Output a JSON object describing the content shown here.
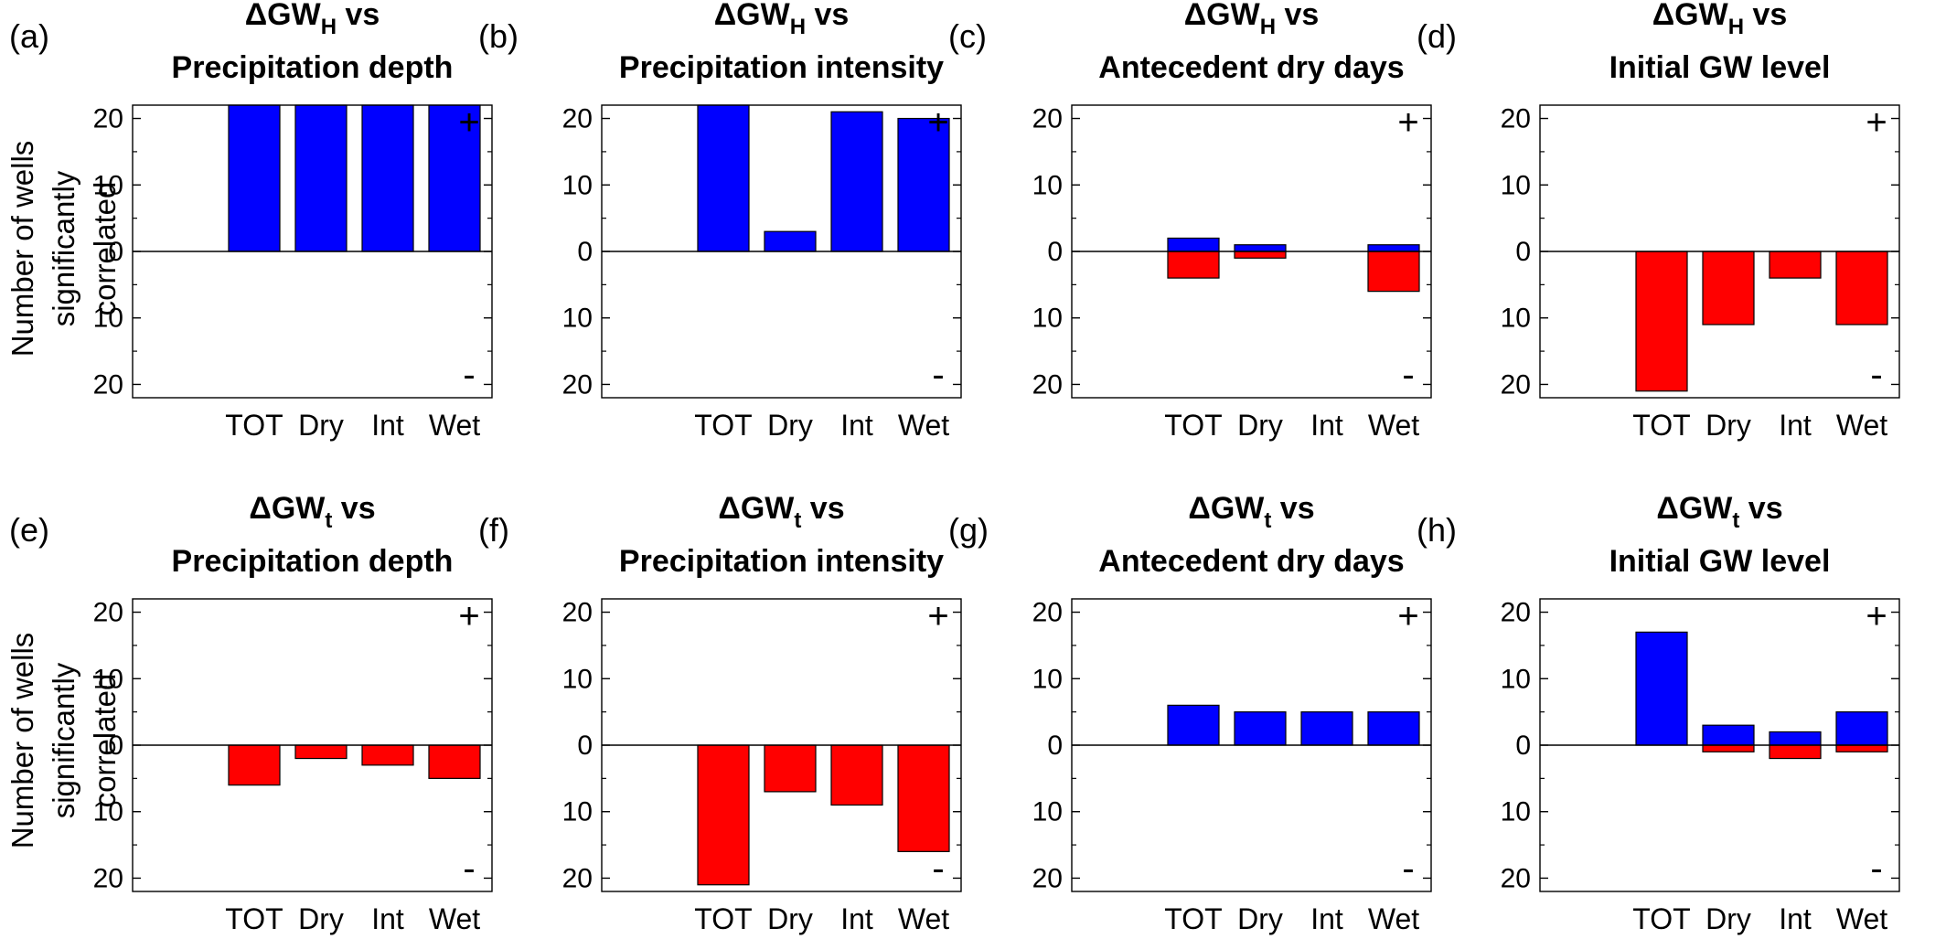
{
  "figure": {
    "ylabel_lines": [
      "Number of wells",
      "significantly",
      "correlated"
    ],
    "categories": [
      "TOT",
      "Dry",
      "Int",
      "Wet"
    ],
    "yticks": [
      "20",
      "10",
      "0",
      "10",
      "20"
    ],
    "plus_sign": "+",
    "minus_sign": "-",
    "colors": {
      "positive": "#0000ff",
      "negative": "#ff0000"
    }
  },
  "chart_data": [
    {
      "type": "bar",
      "panel": "(a)",
      "title_prefix": "ΔGW",
      "title_sub": "H",
      "title_suffix": " vs",
      "title_line2": "Precipitation depth",
      "categories": [
        "TOT",
        "Dry",
        "Int",
        "Wet"
      ],
      "ylim": [
        -22,
        22
      ],
      "grid": false,
      "series": [
        {
          "name": "",
          "color": "#0000ff",
          "values": [
            22,
            22,
            22,
            22
          ]
        },
        {
          "name": "",
          "color": "#ff0000",
          "values": [
            0,
            0,
            0,
            0
          ]
        }
      ]
    },
    {
      "type": "bar",
      "panel": "(b)",
      "title_prefix": "ΔGW",
      "title_sub": "H",
      "title_suffix": " vs",
      "title_line2": "Precipitation intensity",
      "categories": [
        "TOT",
        "Dry",
        "Int",
        "Wet"
      ],
      "ylim": [
        -22,
        22
      ],
      "grid": false,
      "series": [
        {
          "name": "",
          "color": "#0000ff",
          "values": [
            22,
            3,
            21,
            20
          ]
        },
        {
          "name": "",
          "color": "#ff0000",
          "values": [
            0,
            0,
            0,
            0
          ]
        }
      ]
    },
    {
      "type": "bar",
      "panel": "(c)",
      "title_prefix": "ΔGW",
      "title_sub": "H",
      "title_suffix": " vs",
      "title_line2": "Antecedent dry days",
      "categories": [
        "TOT",
        "Dry",
        "Int",
        "Wet"
      ],
      "ylim": [
        -22,
        22
      ],
      "grid": false,
      "series": [
        {
          "name": "",
          "color": "#0000ff",
          "values": [
            2,
            1,
            0,
            1
          ]
        },
        {
          "name": "",
          "color": "#ff0000",
          "values": [
            4,
            1,
            0,
            6
          ]
        }
      ]
    },
    {
      "type": "bar",
      "panel": "(d)",
      "title_prefix": "ΔGW",
      "title_sub": "H",
      "title_suffix": " vs",
      "title_line2": "Initial GW level",
      "categories": [
        "TOT",
        "Dry",
        "Int",
        "Wet"
      ],
      "ylim": [
        -22,
        22
      ],
      "grid": false,
      "series": [
        {
          "name": "",
          "color": "#0000ff",
          "values": [
            0,
            0,
            0,
            0
          ]
        },
        {
          "name": "",
          "color": "#ff0000",
          "values": [
            21,
            11,
            4,
            11
          ]
        }
      ]
    },
    {
      "type": "bar",
      "panel": "(e)",
      "title_prefix": "ΔGW",
      "title_sub": "t",
      "title_suffix": " vs",
      "title_line2": "Precipitation depth",
      "categories": [
        "TOT",
        "Dry",
        "Int",
        "Wet"
      ],
      "ylim": [
        -22,
        22
      ],
      "grid": false,
      "series": [
        {
          "name": "",
          "color": "#0000ff",
          "values": [
            0,
            0,
            0,
            0
          ]
        },
        {
          "name": "",
          "color": "#ff0000",
          "values": [
            6,
            2,
            3,
            5
          ]
        }
      ]
    },
    {
      "type": "bar",
      "panel": "(f)",
      "title_prefix": "ΔGW",
      "title_sub": "t",
      "title_suffix": " vs",
      "title_line2": "Precipitation intensity",
      "categories": [
        "TOT",
        "Dry",
        "Int",
        "Wet"
      ],
      "ylim": [
        -22,
        22
      ],
      "grid": false,
      "series": [
        {
          "name": "",
          "color": "#0000ff",
          "values": [
            0,
            0,
            0,
            0
          ]
        },
        {
          "name": "",
          "color": "#ff0000",
          "values": [
            21,
            7,
            9,
            16
          ]
        }
      ]
    },
    {
      "type": "bar",
      "panel": "(g)",
      "title_prefix": "ΔGW",
      "title_sub": "t",
      "title_suffix": " vs",
      "title_line2": "Antecedent dry days",
      "categories": [
        "TOT",
        "Dry",
        "Int",
        "Wet"
      ],
      "ylim": [
        -22,
        22
      ],
      "grid": false,
      "series": [
        {
          "name": "",
          "color": "#0000ff",
          "values": [
            6,
            5,
            5,
            5
          ]
        },
        {
          "name": "",
          "color": "#ff0000",
          "values": [
            0,
            0,
            0,
            0
          ]
        }
      ]
    },
    {
      "type": "bar",
      "panel": "(h)",
      "title_prefix": "ΔGW",
      "title_sub": "t",
      "title_suffix": " vs",
      "title_line2": "Initial GW level",
      "categories": [
        "TOT",
        "Dry",
        "Int",
        "Wet"
      ],
      "ylim": [
        -22,
        22
      ],
      "grid": false,
      "series": [
        {
          "name": "",
          "color": "#0000ff",
          "values": [
            17,
            3,
            2,
            5
          ]
        },
        {
          "name": "",
          "color": "#ff0000",
          "values": [
            0,
            1,
            2,
            1
          ]
        }
      ]
    }
  ]
}
